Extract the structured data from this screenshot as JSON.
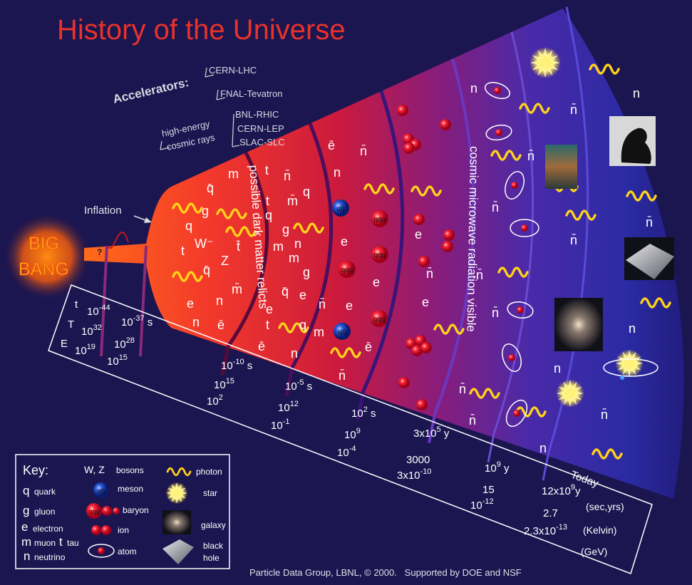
{
  "title": "History of the Universe",
  "accelerators": {
    "heading": "Accelerators:",
    "items": [
      "CERN-LHC",
      "FNAL-Tevatron",
      "BNL-RHIC",
      "CERN-LEP",
      "SLAC-SLC"
    ],
    "cosmic": [
      "high-energy",
      "cosmic rays"
    ]
  },
  "inflation": "Inflation",
  "big_bang": [
    "BIG",
    "BANG"
  ],
  "unknown": "?",
  "eras": [
    "possible dark matter relicts",
    "cosmic microwave radiation visible"
  ],
  "particles": [
    "q̄",
    "m",
    "g",
    "q",
    "W⁻",
    "Z",
    "t",
    "q̄",
    "e",
    "n",
    "n",
    "t̄",
    "ē",
    "m̄",
    "t",
    "n̄",
    "q",
    "m̄",
    "q",
    "t",
    "g",
    "n",
    "m",
    "m",
    "q̄",
    "e",
    "g",
    "e",
    "t",
    "q",
    "m",
    "ē",
    "n",
    "ē",
    "n̄",
    "n",
    "e",
    "e",
    "n̄",
    "ē",
    "n̄",
    "e",
    "e",
    "n̄",
    "e",
    "n",
    "n̄",
    "n̄",
    "n̄",
    "n̄",
    "n̄",
    "n̄",
    "n",
    "n̄",
    "n̄",
    "n",
    "n̄",
    "n",
    "n",
    "n̄"
  ],
  "hadrons": [
    {
      "kind": "meson",
      "text": "qq̄"
    },
    {
      "kind": "meson",
      "text": "qq̄"
    },
    {
      "kind": "baryon",
      "text": "qqq"
    },
    {
      "kind": "baryon",
      "text": "qqq"
    },
    {
      "kind": "baryon",
      "text": "qqq"
    },
    {
      "kind": "baryon",
      "text": "qqq"
    }
  ],
  "timeline": {
    "rows": [
      "t",
      "T",
      "E"
    ],
    "columns": [
      [
        {
          "text": "10",
          "sup": "-44"
        },
        {
          "text": "10",
          "sup": "32"
        },
        {
          "text": "10",
          "sup": "19"
        }
      ],
      [
        {
          "text": "10",
          "sup": "-37",
          "after": " s"
        },
        {
          "text": "10",
          "sup": "28"
        },
        {
          "text": "10",
          "sup": "15"
        }
      ],
      [
        {
          "text": "10",
          "sup": "-10",
          "after": " s"
        },
        {
          "text": "10",
          "sup": "15"
        },
        {
          "text": "10",
          "sup": "2"
        }
      ],
      [
        {
          "text": "10",
          "sup": "-5",
          "after": " s"
        },
        {
          "text": "10",
          "sup": "12"
        },
        {
          "text": "10",
          "sup": "-1"
        }
      ],
      [
        {
          "text": "10",
          "sup": "2",
          "after": " s"
        },
        {
          "text": "10",
          "sup": "9"
        },
        {
          "text": "10",
          "sup": "-4"
        }
      ],
      [
        {
          "text": "3x10",
          "sup": "5",
          "after": " y"
        },
        {
          "text": "3000"
        },
        {
          "text": "3x10",
          "sup": "-10"
        }
      ],
      [
        {
          "text": "10",
          "sup": "9",
          "after": " y"
        },
        {
          "text": "15"
        },
        {
          "text": "10",
          "sup": "-12"
        }
      ],
      [
        {
          "text": "12x10",
          "sup": "9",
          "after": "y"
        },
        {
          "text": "2.7"
        },
        {
          "text": "2.3x10",
          "sup": "-13"
        }
      ]
    ],
    "units": [
      "(sec,yrs)",
      "(Kelvin)",
      "(GeV)"
    ],
    "today": "Today"
  },
  "key": {
    "title": "Key:",
    "entries": [
      {
        "symbol": "q",
        "label": "quark"
      },
      {
        "symbol": "g",
        "label": "gluon"
      },
      {
        "symbol": "e",
        "label": "electron"
      },
      {
        "symbol": "m",
        "label": "muon"
      },
      {
        "symbol": "t",
        "label": "tau"
      },
      {
        "symbol": "n",
        "label": "neutrino"
      },
      {
        "symbol": "W, Z",
        "label": "bosons"
      },
      {
        "symbol": "qq̄",
        "label": "meson"
      },
      {
        "symbol": "qqq",
        "label": "baryon"
      },
      {
        "label": "ion"
      },
      {
        "label": "atom"
      },
      {
        "label": "photon"
      },
      {
        "label": "star"
      },
      {
        "label": "galaxy"
      },
      {
        "label": [
          "black",
          "hole"
        ]
      }
    ]
  },
  "credit": "Particle Data Group, LBNL, © 2000.   Supported by DOE and NSF"
}
